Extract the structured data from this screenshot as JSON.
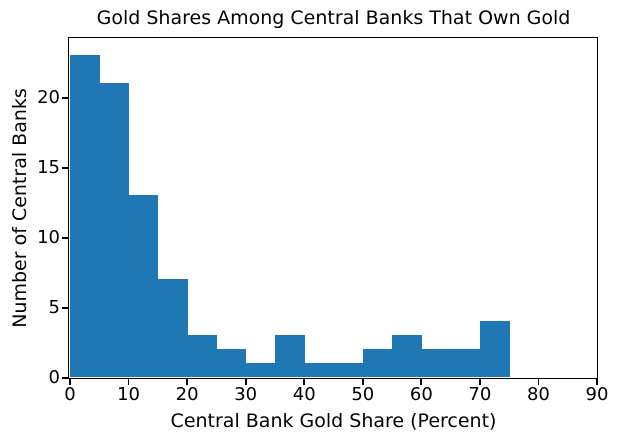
{
  "chart_data": {
    "type": "bar",
    "subtype": "histogram",
    "title": "Gold Shares Among Central Banks That Own Gold",
    "xlabel": "Central Bank Gold Share (Percent)",
    "ylabel": "Number of Central Banks",
    "bin_width": 5,
    "bin_edges": [
      0,
      5,
      10,
      15,
      20,
      25,
      30,
      35,
      40,
      45,
      50,
      55,
      60,
      65,
      70,
      75
    ],
    "counts": [
      23,
      21,
      13,
      7,
      3,
      2,
      1,
      3,
      1,
      1,
      2,
      3,
      2,
      2,
      4
    ],
    "xlim": [
      0,
      90
    ],
    "ylim": [
      0,
      24.15
    ],
    "xticks": [
      0,
      10,
      20,
      30,
      40,
      50,
      60,
      70,
      80,
      90
    ],
    "yticks": [
      0,
      5,
      10,
      15,
      20
    ],
    "bar_color": "#1f77b4",
    "axis_color": "#000000",
    "text_color": "#000000",
    "background": "#ffffff",
    "grid": false,
    "legend": null
  }
}
